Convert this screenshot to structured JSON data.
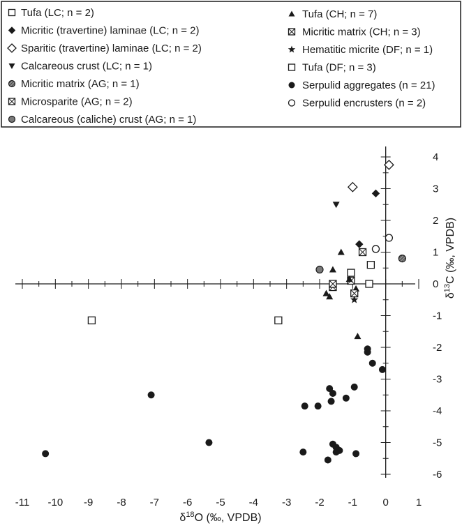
{
  "chart_data": {
    "type": "scatter",
    "xlabel_main": "δ",
    "xlabel_sup": "18",
    "xlabel_rest": "O (‰, VPDB)",
    "ylabel_main": "δ",
    "ylabel_sup": "13",
    "ylabel_rest": "C (‰, VPDB)",
    "xlim": [
      -11,
      1
    ],
    "ylim": [
      -6,
      4
    ],
    "x_ticks": [
      "-11",
      "-10",
      "-9",
      "-8",
      "-7",
      "-6",
      "-5",
      "-4",
      "-3",
      "-2",
      "-1",
      "0",
      "1"
    ],
    "y_ticks": [
      "4",
      "3",
      "2",
      "1",
      "0",
      "-1",
      "-2",
      "-3",
      "-4",
      "-5",
      "-6"
    ],
    "colors": {
      "ink": "#1a1a1a",
      "gray_fill": "#7a7a7a",
      "background": "#ffffff"
    },
    "legend_position": "top",
    "series": [
      {
        "name": "Tufa (LC; n = 2)",
        "marker": "square-open",
        "points": [
          [
            -8.9,
            -1.15
          ],
          [
            -3.25,
            -1.15
          ]
        ]
      },
      {
        "name": "Micritic (travertine) laminae (LC; n = 2)",
        "marker": "diamond-filled",
        "points": [
          [
            -0.8,
            1.25
          ],
          [
            -0.3,
            2.85
          ]
        ]
      },
      {
        "name": "Sparitic (travertine) laminae (LC; n = 2)",
        "marker": "diamond-open",
        "points": [
          [
            -1.0,
            3.05
          ],
          [
            0.1,
            3.75
          ]
        ]
      },
      {
        "name": "Calcareous crust (LC; n = 1)",
        "marker": "triangle-down",
        "points": [
          [
            -1.5,
            2.5
          ]
        ]
      },
      {
        "name": "Micritic matrix (AG; n = 1)",
        "marker": "circle-hatched",
        "points": [
          [
            0.5,
            0.8
          ]
        ]
      },
      {
        "name": "Microsparite (AG; n = 2)",
        "marker": "square-cross",
        "points": [
          [
            -1.6,
            -0.1
          ],
          [
            -1.05,
            0.1
          ]
        ]
      },
      {
        "name": "Calcareous (caliche) crust (AG; n = 1)",
        "marker": "circle-gray",
        "points": [
          [
            -2.0,
            0.45
          ]
        ]
      },
      {
        "name": "Tufa (CH; n = 7)",
        "marker": "triangle-up",
        "points": [
          [
            -1.35,
            1.0
          ],
          [
            -1.6,
            0.45
          ],
          [
            -1.8,
            -0.3
          ],
          [
            -1.7,
            -0.4
          ],
          [
            -1.1,
            0.15
          ],
          [
            -0.9,
            -0.15
          ],
          [
            -0.85,
            -1.65
          ]
        ]
      },
      {
        "name": "Micritic matrix (CH; n = 3)",
        "marker": "square-cross",
        "points": [
          [
            -0.7,
            1.0
          ],
          [
            -1.6,
            0.0
          ],
          [
            -0.95,
            -0.3
          ]
        ]
      },
      {
        "name": "Hematitic micrite (DF; n = 1)",
        "marker": "star",
        "points": [
          [
            -0.95,
            -0.5
          ]
        ]
      },
      {
        "name": "Tufa (DF; n = 3)",
        "marker": "square-open",
        "points": [
          [
            -0.45,
            0.6
          ],
          [
            -0.5,
            0.0
          ],
          [
            -1.05,
            0.35
          ]
        ]
      },
      {
        "name": "Serpulid aggregates (n = 21)",
        "marker": "circle-filled",
        "points": [
          [
            -10.3,
            -5.35
          ],
          [
            -7.1,
            -3.5
          ],
          [
            -5.35,
            -5.0
          ],
          [
            -2.5,
            -5.3
          ],
          [
            -2.45,
            -3.85
          ],
          [
            -2.05,
            -3.85
          ],
          [
            -1.7,
            -3.3
          ],
          [
            -1.65,
            -3.7
          ],
          [
            -1.6,
            -3.45
          ],
          [
            -1.2,
            -3.6
          ],
          [
            -0.95,
            -3.25
          ],
          [
            -0.55,
            -2.05
          ],
          [
            -0.55,
            -2.15
          ],
          [
            -0.4,
            -2.5
          ],
          [
            -0.1,
            -2.7
          ],
          [
            -1.6,
            -5.05
          ],
          [
            -1.5,
            -5.15
          ],
          [
            -1.5,
            -5.3
          ],
          [
            -1.75,
            -5.55
          ],
          [
            -0.9,
            -5.35
          ],
          [
            -1.4,
            -5.25
          ]
        ]
      },
      {
        "name": "Serpulid encrusters (n = 2)",
        "marker": "circle-open",
        "points": [
          [
            -0.3,
            1.1
          ],
          [
            0.1,
            1.45
          ]
        ]
      }
    ],
    "legend": {
      "left": [
        {
          "label": "Tufa (LC; n = 2)",
          "marker": "square-open"
        },
        {
          "label": "Micritic (travertine) laminae (LC; n = 2)",
          "marker": "diamond-filled"
        },
        {
          "label": "Sparitic (travertine) laminae (LC; n = 2)",
          "marker": "diamond-open"
        },
        {
          "label": "Calcareous crust (LC; n = 1)",
          "marker": "triangle-down"
        },
        {
          "label": "Micritic matrix (AG; n = 1)",
          "marker": "circle-hatched"
        },
        {
          "label": "Microsparite (AG; n = 2)",
          "marker": "square-cross"
        },
        {
          "label": "Calcareous (caliche) crust (AG; n = 1)",
          "marker": "circle-gray"
        }
      ],
      "right": [
        {
          "label": "Tufa (CH; n = 7)",
          "marker": "triangle-up"
        },
        {
          "label": "Micritic matrix (CH; n = 3)",
          "marker": "square-cross"
        },
        {
          "label": "Hematitic micrite (DF; n = 1)",
          "marker": "star"
        },
        {
          "label": "Tufa (DF; n = 3)",
          "marker": "square-open"
        },
        {
          "label": "Serpulid aggregates (n = 21)",
          "marker": "circle-filled"
        },
        {
          "label": "Serpulid encrusters (n = 2)",
          "marker": "circle-open"
        }
      ]
    }
  }
}
